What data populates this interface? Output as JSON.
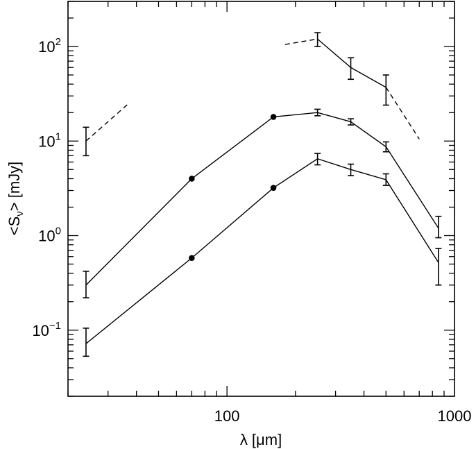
{
  "chart_data": {
    "type": "line",
    "xscale": "log",
    "yscale": "log",
    "xlim": [
      20,
      1000
    ],
    "ylim": [
      0.02,
      300
    ],
    "grid": false,
    "legend": "none",
    "xlabel": {
      "pre": "λ [",
      "unit": "μm",
      "post": "]"
    },
    "ylabel": {
      "pre": "<S",
      "sub": "ν",
      "post": "> [mJy]"
    },
    "xticks": [
      {
        "value": 100,
        "label": "100"
      },
      {
        "value": 1000,
        "label": "1000"
      }
    ],
    "yticks": [
      {
        "value": 0.1,
        "base": "10",
        "exp": "−1"
      },
      {
        "value": 1,
        "base": "10",
        "exp": "0"
      },
      {
        "value": 10,
        "base": "10",
        "exp": "1"
      },
      {
        "value": 100,
        "base": "10",
        "exp": "2"
      }
    ],
    "series": [
      {
        "style": "solid",
        "points": [
          {
            "x": 24,
            "y": 0.3,
            "yerr": [
              0.22,
              0.42
            ]
          },
          {
            "x": 70,
            "y": 4.0,
            "marker": "dot"
          },
          {
            "x": 160,
            "y": 18.0,
            "marker": "dot"
          },
          {
            "x": 250,
            "y": 20.0,
            "yerr": [
              18.5,
              21.7
            ]
          },
          {
            "x": 350,
            "y": 16.0,
            "yerr": [
              14.8,
              17.2
            ]
          },
          {
            "x": 500,
            "y": 8.7,
            "yerr": [
              7.7,
              9.8
            ]
          },
          {
            "x": 850,
            "y": 1.2,
            "yerr": [
              0.95,
              1.6
            ]
          }
        ]
      },
      {
        "style": "solid",
        "points": [
          {
            "x": 24,
            "y": 0.072,
            "yerr": [
              0.053,
              0.105
            ]
          },
          {
            "x": 70,
            "y": 0.58,
            "marker": "dot"
          },
          {
            "x": 160,
            "y": 3.2,
            "marker": "dot"
          },
          {
            "x": 250,
            "y": 6.5,
            "yerr": [
              5.6,
              7.4
            ]
          },
          {
            "x": 350,
            "y": 5.0,
            "yerr": [
              4.3,
              5.7
            ]
          },
          {
            "x": 500,
            "y": 3.9,
            "yerr": [
              3.4,
              4.5
            ]
          },
          {
            "x": 850,
            "y": 0.52,
            "yerr": [
              0.3,
              0.73
            ]
          }
        ]
      },
      {
        "style": "solid",
        "points": [
          {
            "x": 250,
            "y": 120,
            "yerr": [
              100,
              140
            ]
          },
          {
            "x": 350,
            "y": 60,
            "yerr": [
              45,
              76
            ]
          },
          {
            "x": 500,
            "y": 37,
            "yerr": [
              24,
              50
            ]
          }
        ]
      },
      {
        "style": "dashed",
        "points": [
          {
            "x": 24,
            "y": 10,
            "yerr": [
              7,
              14
            ]
          },
          {
            "x": 37,
            "y": 25
          }
        ]
      },
      {
        "style": "dashed",
        "points": [
          {
            "x": 180,
            "y": 105
          },
          {
            "x": 250,
            "y": 120
          }
        ]
      },
      {
        "style": "dashed",
        "points": [
          {
            "x": 500,
            "y": 37
          },
          {
            "x": 700,
            "y": 10.5
          }
        ]
      }
    ]
  }
}
